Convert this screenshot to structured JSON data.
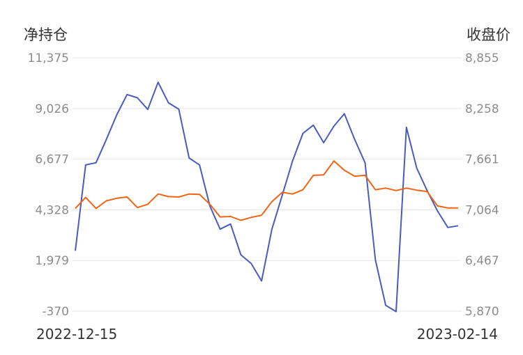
{
  "chart_data": {
    "type": "line",
    "left_axis_title": "净持仓",
    "right_axis_title": "收盘价",
    "x_start_label": "2022-12-15",
    "x_end_label": "2023-02-14",
    "left_ticks": [
      "11,375",
      "9,026",
      "6,677",
      "4,328",
      "1,979",
      "-370"
    ],
    "right_ticks": [
      "8,855",
      "8,258",
      "7,661",
      "7,064",
      "6,467",
      "5,870"
    ],
    "left_ylim": [
      -370,
      11375
    ],
    "right_ylim": [
      5870,
      8855
    ],
    "grid": true,
    "legend": "none",
    "series": [
      {
        "axis": "left",
        "color": "#4a5bbf",
        "values": [
          2430,
          6410,
          6510,
          7590,
          8730,
          9670,
          9520,
          8980,
          10240,
          9290,
          8990,
          6730,
          6410,
          4510,
          3430,
          3670,
          2240,
          1840,
          1030,
          3430,
          5010,
          6600,
          7870,
          8250,
          7440,
          8210,
          8780,
          7590,
          6510,
          2010,
          -100,
          -390,
          8150,
          6260,
          5220,
          4280,
          3510,
          3590
        ]
      },
      {
        "axis": "right",
        "color": "#f06414",
        "values": [
          7080,
          7210,
          7080,
          7170,
          7200,
          7215,
          7090,
          7130,
          7250,
          7220,
          7215,
          7250,
          7245,
          7130,
          6980,
          6985,
          6940,
          6975,
          7000,
          7160,
          7270,
          7250,
          7300,
          7470,
          7475,
          7640,
          7530,
          7460,
          7470,
          7300,
          7320,
          7290,
          7320,
          7295,
          7280,
          7110,
          7085,
          7085
        ]
      }
    ]
  }
}
